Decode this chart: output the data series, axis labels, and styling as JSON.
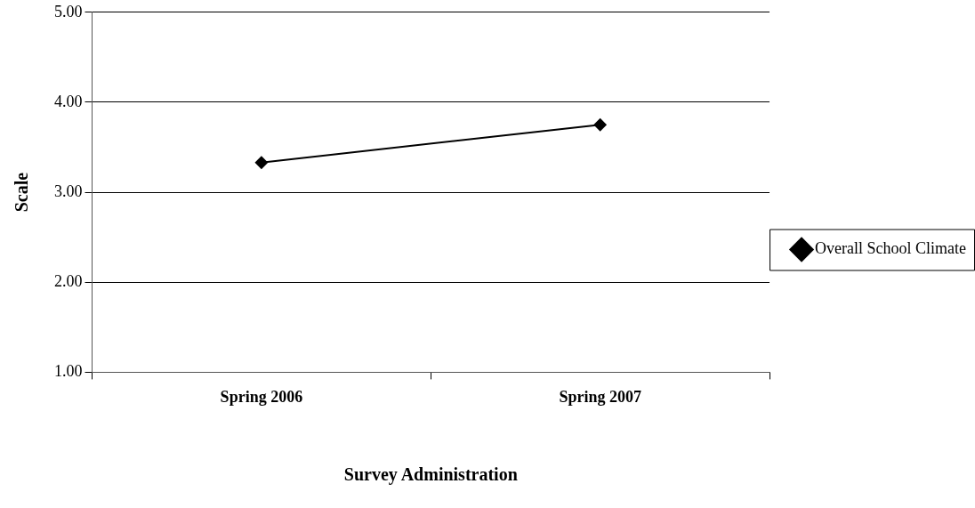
{
  "chart_data": {
    "type": "line",
    "xlabel": "Survey Administration",
    "ylabel": "Scale",
    "categories": [
      "Spring 2006",
      "Spring 2007"
    ],
    "series": [
      {
        "name": "Overall School Climate",
        "color": "#000000",
        "values": [
          3.33,
          3.75
        ]
      }
    ],
    "ylim": [
      1,
      5
    ],
    "yticks": [
      {
        "value": 1,
        "label": "1.00"
      },
      {
        "value": 2,
        "label": "2.00"
      },
      {
        "value": 3,
        "label": "3.00"
      },
      {
        "value": 4,
        "label": "4.00"
      },
      {
        "value": 5,
        "label": "5.00"
      }
    ],
    "grid": "y",
    "legend": "right",
    "marker": "diamond",
    "line_style": "solid"
  }
}
